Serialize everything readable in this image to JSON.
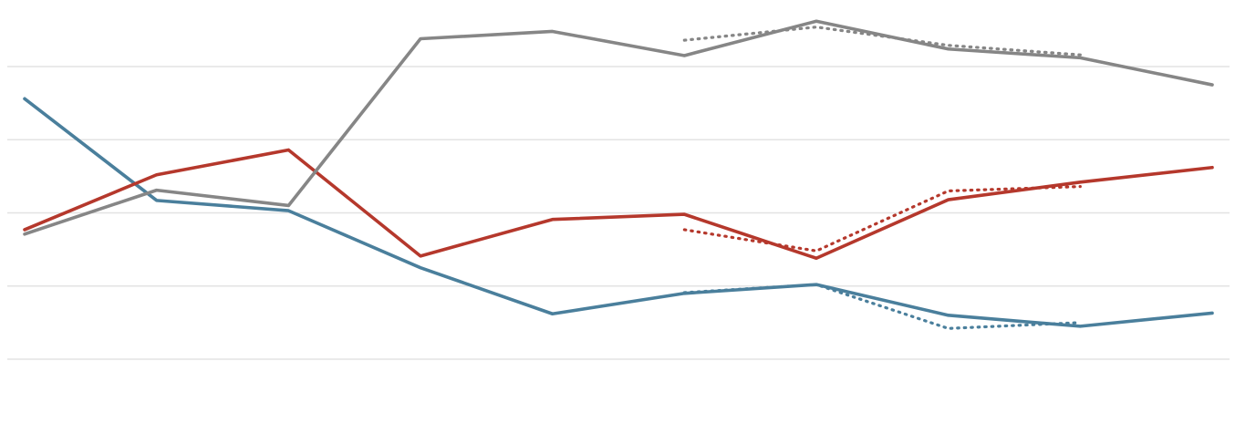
{
  "chart_data": {
    "type": "line",
    "title": "",
    "xlabel": "",
    "ylabel": "",
    "x": [
      1,
      2,
      3,
      4,
      5,
      6,
      7,
      8,
      9,
      10
    ],
    "ylim": [
      0,
      4
    ],
    "gridlines": [
      0,
      1,
      2,
      3,
      4
    ],
    "grid": true,
    "series": [
      {
        "color": "#4a7f9c",
        "values": [
          3.56,
          2.17,
          2.03,
          1.25,
          0.62,
          0.9,
          1.02,
          0.6,
          0.45,
          0.63
        ]
      },
      {
        "color": "#b5382c",
        "values": [
          1.77,
          2.52,
          2.86,
          1.41,
          1.91,
          1.98,
          1.38,
          2.18,
          2.42,
          2.62
        ]
      },
      {
        "color": "#868686",
        "values": [
          1.71,
          2.31,
          2.1,
          4.38,
          4.48,
          4.15,
          4.62,
          4.24,
          4.12,
          3.75
        ]
      }
    ],
    "dotted_series": [
      {
        "color": "#4a7f9c",
        "x": [
          6,
          7,
          8,
          9
        ],
        "values": [
          0.91,
          1.02,
          0.42,
          0.5
        ]
      },
      {
        "color": "#b5382c",
        "x": [
          6,
          7,
          8,
          9
        ],
        "values": [
          1.77,
          1.48,
          2.3,
          2.36
        ]
      },
      {
        "color": "#868686",
        "x": [
          6,
          7,
          8,
          9
        ],
        "values": [
          4.36,
          4.54,
          4.29,
          4.16
        ]
      }
    ]
  }
}
